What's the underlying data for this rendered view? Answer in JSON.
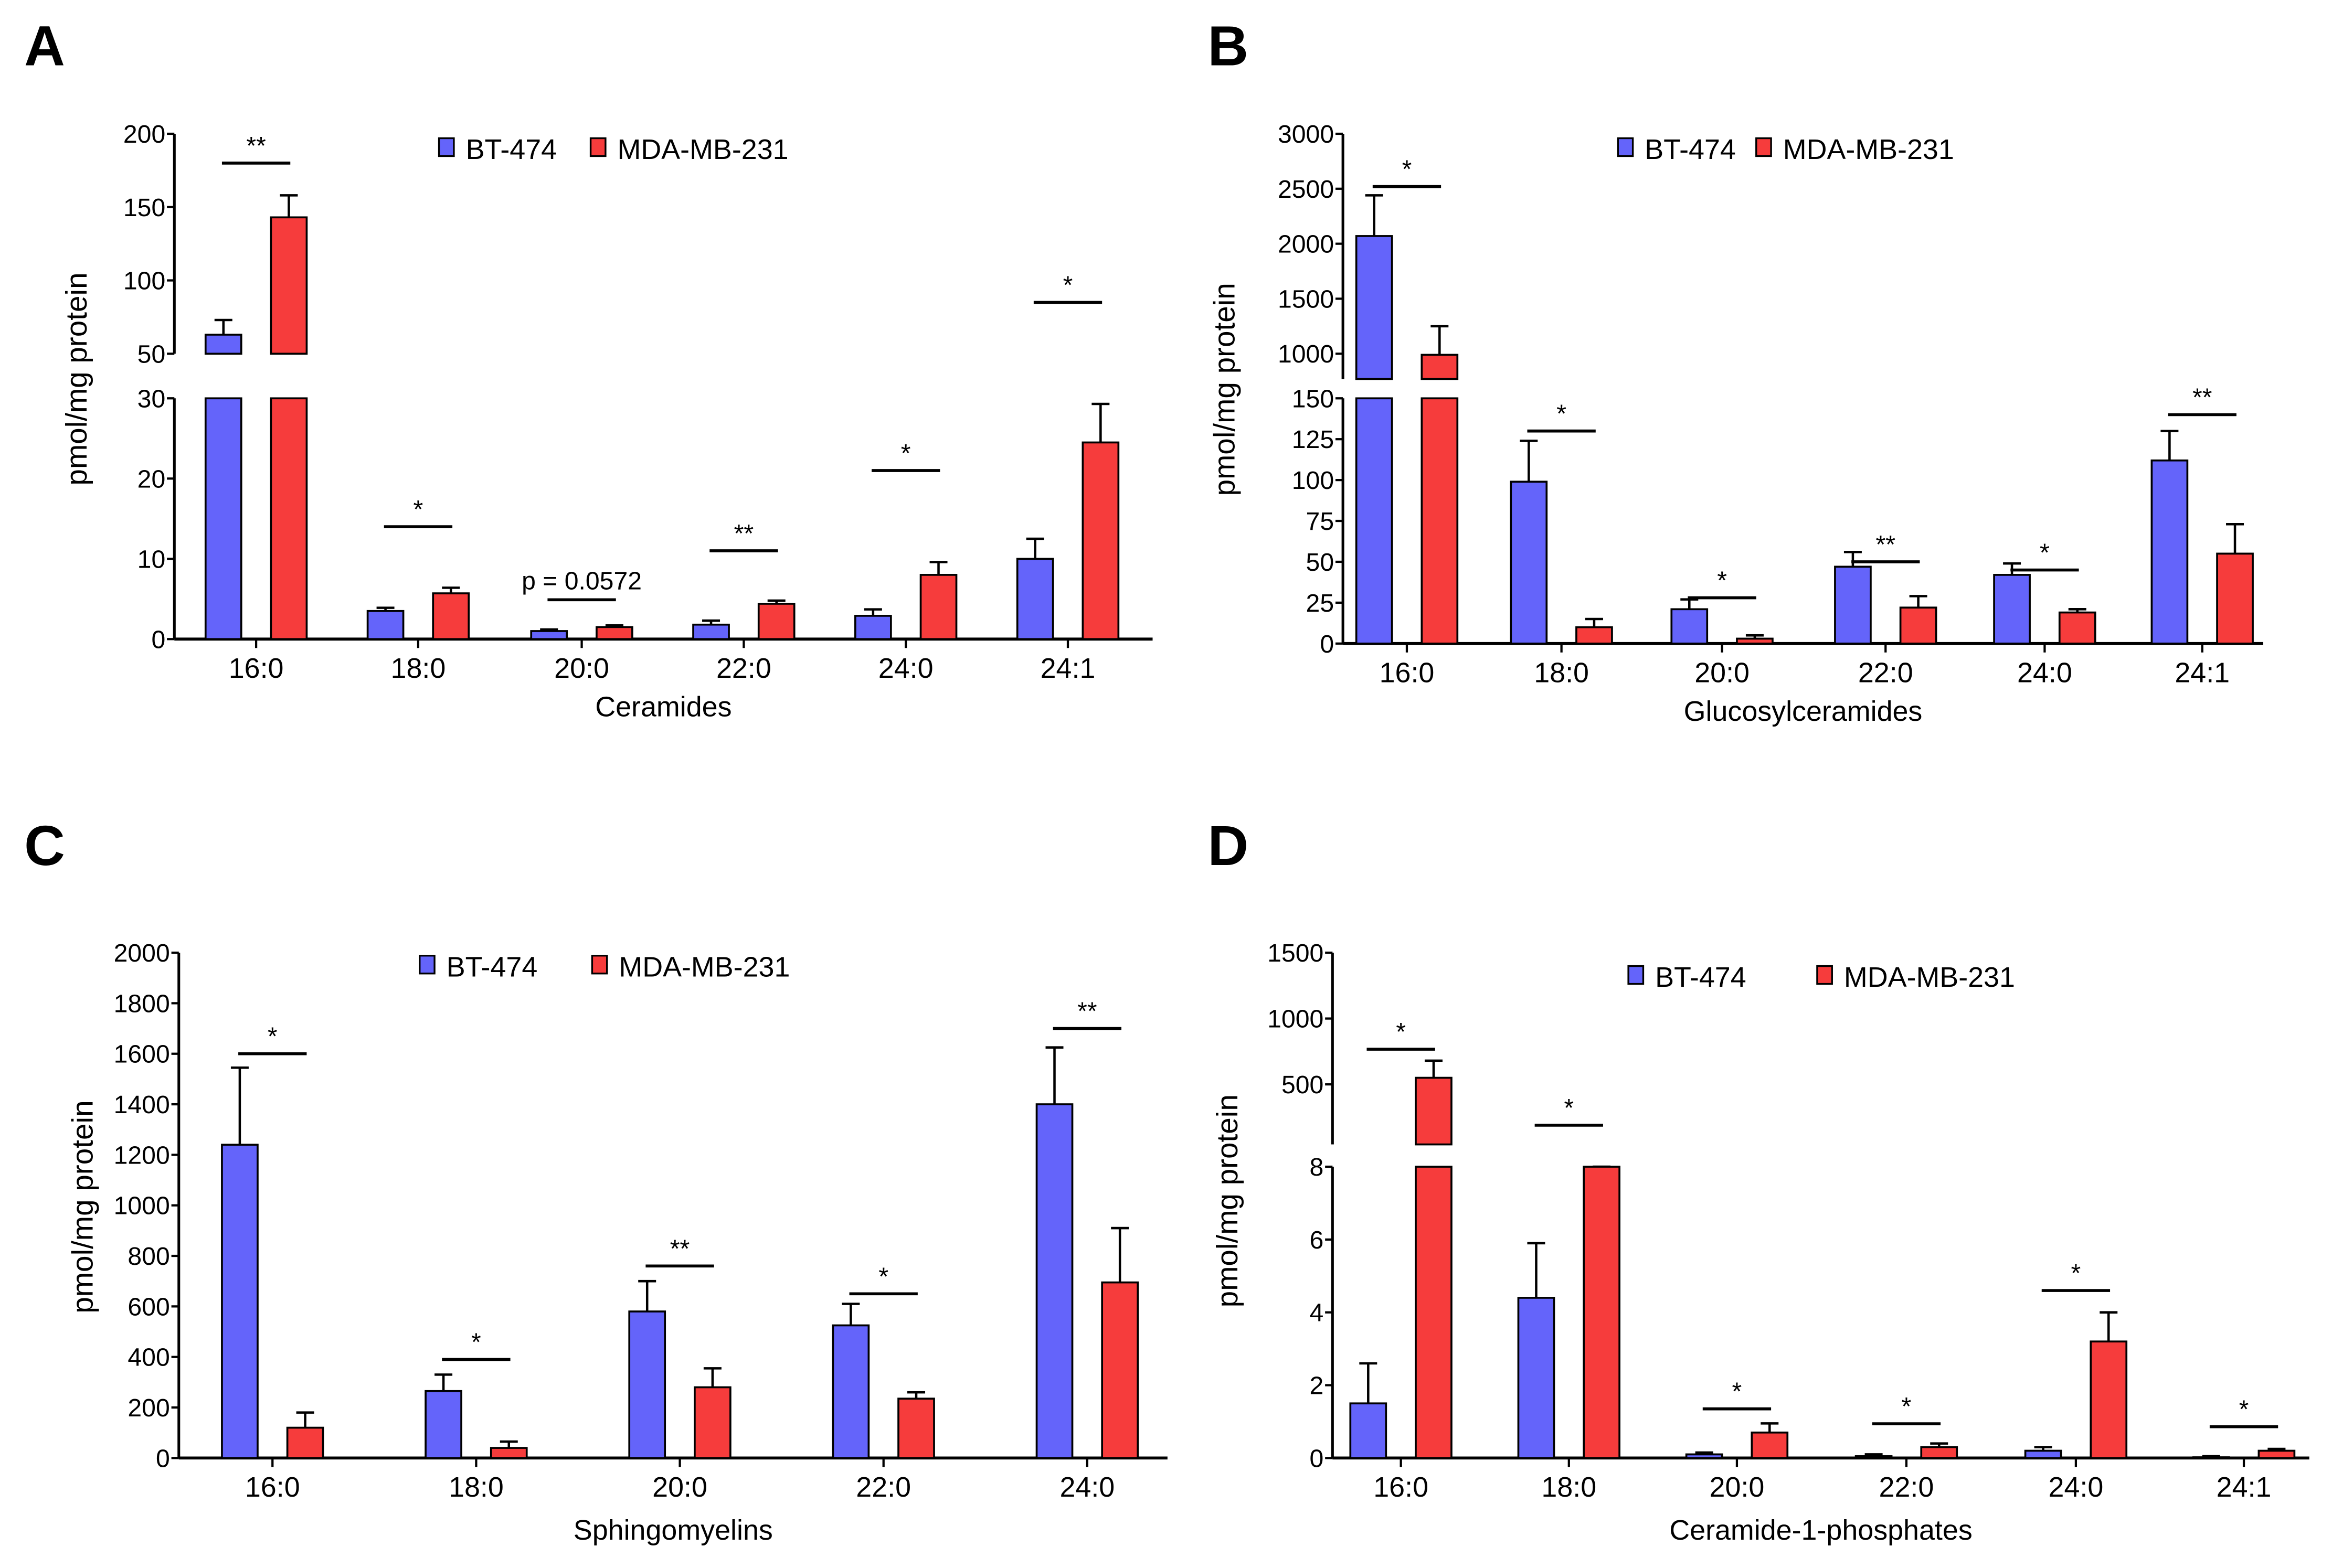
{
  "colors": {
    "bt474": "#6464fa",
    "mda231": "#f63c3c"
  },
  "legend": [
    "BT-474",
    "MDA-MB-231"
  ],
  "chart_data": [
    {
      "panel": "A",
      "type": "bar",
      "xlabel": "Ceramides",
      "ylabel": "pmol/mg protein",
      "categories": [
        "16:0",
        "18:0",
        "20:0",
        "22:0",
        "24:0",
        "24:1"
      ],
      "axis_break": {
        "lower": [
          0,
          30
        ],
        "upper": [
          50,
          200
        ]
      },
      "ticks_lower": [
        "0",
        "10",
        "20",
        "30"
      ],
      "ticks_upper": [
        "50",
        "100",
        "150",
        "200"
      ],
      "series": [
        {
          "name": "BT-474",
          "values": [
            63,
            3.5,
            1.0,
            1.8,
            2.9,
            10.0
          ],
          "error_top": [
            73,
            3.9,
            1.2,
            2.3,
            3.7,
            12.5
          ]
        },
        {
          "name": "MDA-MB-231",
          "values": [
            143,
            5.7,
            1.5,
            4.4,
            8.0,
            24.5
          ],
          "error_top": [
            158,
            6.4,
            1.7,
            4.8,
            9.6,
            29.3
          ]
        }
      ],
      "significance": [
        {
          "label": "**",
          "level": 180
        },
        {
          "label": "*",
          "level": 14
        },
        {
          "label": "p = 0.0572",
          "level": 4.9
        },
        {
          "label": "**",
          "level": 11
        },
        {
          "label": "*",
          "level": 21
        },
        {
          "label": "*",
          "level": 85
        }
      ]
    },
    {
      "panel": "B",
      "type": "bar",
      "xlabel": "Glucosylceramides",
      "ylabel": "pmol/mg protein",
      "categories": [
        "16:0",
        "18:0",
        "20:0",
        "22:0",
        "24:0",
        "24:1"
      ],
      "axis_break": {
        "lower": [
          0,
          150
        ],
        "upper": [
          770,
          3000
        ]
      },
      "ticks_lower": [
        "0",
        "25",
        "50",
        "75",
        "100",
        "125",
        "150"
      ],
      "ticks_upper": [
        "1000",
        "1500",
        "2000",
        "2500",
        "3000"
      ],
      "series": [
        {
          "name": "BT-474",
          "values": [
            2070,
            99,
            21,
            47,
            42,
            112
          ],
          "error_top": [
            2440,
            124,
            27,
            56,
            49,
            130
          ]
        },
        {
          "name": "MDA-MB-231",
          "values": [
            990,
            10,
            3,
            22,
            19,
            55
          ],
          "error_top": [
            1250,
            15,
            5,
            29,
            21,
            73
          ]
        }
      ],
      "significance": [
        {
          "label": "*",
          "level": 2520
        },
        {
          "label": "*",
          "level": 130
        },
        {
          "label": "*",
          "level": 28
        },
        {
          "label": "**",
          "level": 50
        },
        {
          "label": "*",
          "level": 45
        },
        {
          "label": "**",
          "level": 140
        }
      ]
    },
    {
      "panel": "C",
      "type": "bar",
      "xlabel": "Sphingomyelins",
      "ylabel": "pmol/mg protein",
      "categories": [
        "16:0",
        "18:0",
        "20:0",
        "22:0",
        "24:0"
      ],
      "axis_break": null,
      "ylim": [
        0,
        2000
      ],
      "ticks_lower": [
        "0",
        "200",
        "400",
        "600",
        "800",
        "1000",
        "1200",
        "1400",
        "1600",
        "1800",
        "2000"
      ],
      "ticks_upper": [],
      "series": [
        {
          "name": "BT-474",
          "values": [
            1240,
            265,
            580,
            525,
            1400
          ],
          "error_top": [
            1545,
            330,
            700,
            610,
            1625
          ]
        },
        {
          "name": "MDA-MB-231",
          "values": [
            120,
            40,
            280,
            235,
            695
          ],
          "error_top": [
            180,
            65,
            355,
            260,
            910
          ]
        }
      ],
      "significance": [
        {
          "label": "*",
          "level": 1600
        },
        {
          "label": "*",
          "level": 390
        },
        {
          "label": "**",
          "level": 760
        },
        {
          "label": "*",
          "level": 650
        },
        {
          "label": "**",
          "level": 1700
        }
      ]
    },
    {
      "panel": "D",
      "type": "bar",
      "xlabel": "Ceramide-1-phosphates",
      "ylabel": "pmol/mg protein",
      "categories": [
        "16:0",
        "18:0",
        "20:0",
        "22:0",
        "24:0",
        "24:1"
      ],
      "axis_break": {
        "lower": [
          0,
          8
        ],
        "upper": [
          44,
          1500
        ]
      },
      "ticks_lower": [
        "0",
        "2",
        "4",
        "6",
        "8"
      ],
      "ticks_upper": [
        "500",
        "1000",
        "1500"
      ],
      "series": [
        {
          "name": "BT-474",
          "values": [
            1.5,
            4.4,
            0.1,
            0.05,
            0.2,
            0.02
          ],
          "error_top": [
            2.6,
            5.9,
            0.15,
            0.1,
            0.3,
            0.05
          ]
        },
        {
          "name": "MDA-MB-231",
          "values": [
            550,
            40,
            0.7,
            0.3,
            3.2,
            0.2
          ],
          "error_top": [
            680,
            42,
            0.95,
            0.4,
            4.0,
            0.25
          ]
        }
      ],
      "significance": [
        {
          "label": "*",
          "level": 767
        },
        {
          "label": "*",
          "level": 190
        },
        {
          "label": "*",
          "level": 1.35
        },
        {
          "label": "*",
          "level": 0.94
        },
        {
          "label": "*",
          "level": 4.6
        },
        {
          "label": "*",
          "level": 0.86
        }
      ]
    }
  ]
}
